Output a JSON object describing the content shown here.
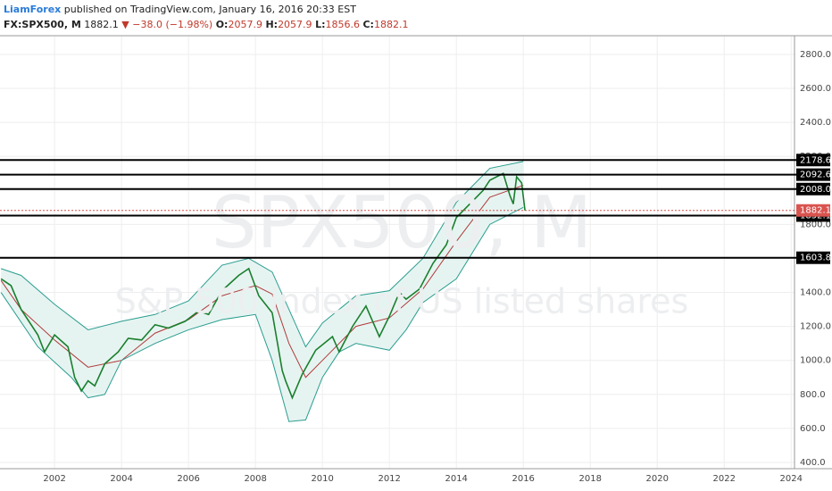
{
  "chart_data": {
    "type": "line",
    "header": {
      "author": "LiamForex",
      "published": "published on TradingView.com, January 16, 2016 20:33 EST",
      "symbol": "FX:SPX500, M",
      "change": "−38.0 (−1.98%)",
      "open_label": "O:",
      "open": 2057.9,
      "high_label": "H:",
      "high": 2057.9,
      "low_label": "L:",
      "low": 1856.6,
      "close_label": "C:",
      "close": 1882.1
    },
    "watermark": "SPX500, M",
    "watermark_subtitle": "S&P 500 index of US listed shares",
    "last": 1882.1,
    "xlim": [
      2000.37,
      2024.1
    ],
    "xticks": [
      2002,
      2004,
      2006,
      2008,
      2010,
      2012,
      2014,
      2016,
      2018,
      2020,
      2022,
      2024
    ],
    "ylim": [
      363,
      2910
    ],
    "yticks": [
      {
        "value": 400,
        "label": "400.0"
      },
      {
        "value": 600,
        "label": "600.0"
      },
      {
        "value": 800,
        "label": "800.0"
      },
      {
        "value": 1000,
        "label": "1000.0"
      },
      {
        "value": 1200,
        "label": "1200.0"
      },
      {
        "value": 1400,
        "label": "1400.0"
      },
      {
        "value": 1600,
        "label": "1600.0"
      },
      {
        "value": 1800,
        "label": "1800.0"
      },
      {
        "value": 2000,
        "label": "2000.0"
      },
      {
        "value": 2200,
        "label": "2200.0"
      },
      {
        "value": 2400,
        "label": "2400.0"
      },
      {
        "value": 2600,
        "label": "2600.0"
      },
      {
        "value": 2800,
        "label": "2800.0"
      }
    ],
    "levels": [
      2178.6,
      2092.6,
      {
        "value": 2008,
        "label": "2008.0"
      },
      1852.1,
      1603.8
    ],
    "grid": true,
    "series": [
      {
        "color": "#1a7f2e",
        "x": [
          2000.4,
          2000.7,
          2001.0,
          2001.5,
          2001.7,
          2002.0,
          2002.4,
          2002.6,
          2002.8,
          2003.0,
          2003.2,
          2003.5,
          2003.9,
          2004.2,
          2004.6,
          2005.0,
          2005.4,
          2005.9,
          2006.3,
          2006.6,
          2007.0,
          2007.5,
          2007.8,
          2008.1,
          2008.5,
          2008.8,
          2008.9,
          2009.1,
          2009.4,
          2009.8,
          2010.3,
          2010.5,
          2010.9,
          2011.3,
          2011.7,
          2012.0,
          2012.3,
          2012.5,
          2012.9,
          2013.3,
          2013.7,
          2014.0,
          2014.4,
          2014.8,
          2015.0,
          2015.4,
          2015.6,
          2015.7,
          2015.8,
          2015.95,
          2016.05
        ],
        "values": [
          1480,
          1440,
          1300,
          1150,
          1050,
          1150,
          1080,
          900,
          820,
          880,
          850,
          980,
          1050,
          1130,
          1120,
          1210,
          1190,
          1230,
          1290,
          1270,
          1410,
          1500,
          1540,
          1380,
          1280,
          940,
          880,
          780,
          920,
          1060,
          1140,
          1050,
          1200,
          1320,
          1140,
          1260,
          1400,
          1360,
          1420,
          1570,
          1680,
          1840,
          1920,
          2000,
          2060,
          2100,
          1970,
          1920,
          2080,
          2044,
          1882.1
        ]
      },
      {
        "color": "#2a9d8f",
        "x": [
          2000.4,
          2001.0,
          2002.0,
          2003.0,
          2004.0,
          2005.0,
          2006.0,
          2007.0,
          2007.8,
          2008.5,
          2009.0,
          2009.5,
          2010.0,
          2011.0,
          2012.0,
          2013.0,
          2014.0,
          2015.0,
          2016.0
        ],
        "values": [
          1540,
          1500,
          1330,
          1180,
          1230,
          1270,
          1350,
          1560,
          1600,
          1520,
          1300,
          1080,
          1220,
          1380,
          1410,
          1600,
          1930,
          2130,
          2170
        ]
      },
      {
        "color": "#b03a3a",
        "x": [
          2000.4,
          2001.0,
          2002.0,
          2003.0,
          2004.0,
          2005.0,
          2006.0,
          2007.0,
          2008.0,
          2008.5,
          2009.0,
          2009.5,
          2010.0,
          2011.0,
          2012.0,
          2013.0,
          2014.0,
          2015.0,
          2016.0
        ],
        "values": [
          1470,
          1300,
          1120,
          960,
          1000,
          1160,
          1240,
          1380,
          1440,
          1390,
          1100,
          900,
          1000,
          1200,
          1250,
          1420,
          1700,
          1960,
          2030
        ]
      },
      {
        "color": "#2a9d8f",
        "x": [
          2000.4,
          2001.5,
          2002.5,
          2003.0,
          2003.5,
          2004.0,
          2005.0,
          2006.0,
          2007.0,
          2008.0,
          2008.5,
          2009.0,
          2009.5,
          2010.0,
          2010.5,
          2011.0,
          2012.0,
          2012.5,
          2013.0,
          2014.0,
          2015.0,
          2016.0
        ],
        "values": [
          1400,
          1080,
          900,
          780,
          800,
          1000,
          1100,
          1180,
          1240,
          1270,
          1000,
          640,
          650,
          900,
          1050,
          1100,
          1060,
          1180,
          1340,
          1480,
          1800,
          1900
        ]
      }
    ]
  }
}
